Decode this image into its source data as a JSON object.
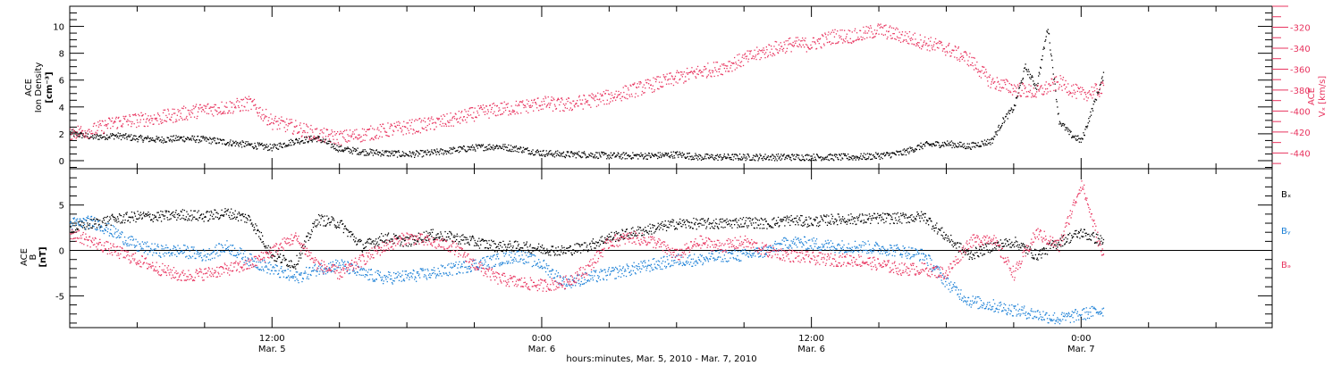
{
  "colors": {
    "black": "#000000",
    "pink": "#e8345f",
    "blue": "#1a7fd6"
  },
  "xaxis": {
    "title": "hours:minutes, Mar.  5, 2010 - Mar.  7, 2010",
    "ticks": [
      {
        "t": 12,
        "time": "12:00",
        "date": "Mar. 5"
      },
      {
        "t": 24,
        "time": "0:00",
        "date": "Mar. 6"
      },
      {
        "t": 36,
        "time": "12:00",
        "date": "Mar. 6"
      },
      {
        "t": 48,
        "time": "0:00",
        "date": "Mar. 7"
      }
    ]
  },
  "chart_data": [
    {
      "type": "scatter",
      "panel": "top",
      "x_unit": "hours from 0:00 Mar. 5, 2010",
      "xlim": [
        3,
        56.5
      ],
      "left_axis": {
        "label_line1": "ACE",
        "label_line2": "Ion Density",
        "unit": "[cm⁻³]",
        "ylim": [
          -0.6,
          11.5
        ],
        "ticks": [
          0,
          2,
          4,
          6,
          8,
          10
        ]
      },
      "right_axis": {
        "label_line1": "ACE",
        "label_line2": "Vₓ [km/s]",
        "ylim": [
          -455,
          -300
        ],
        "ticks": [
          -320,
          -340,
          -360,
          -380,
          -400,
          -420,
          -440
        ]
      },
      "series": [
        {
          "axis": "left",
          "color": "black",
          "x": [
            3,
            4,
            5,
            6,
            7,
            8,
            9,
            10,
            11,
            12,
            13,
            14,
            15,
            16,
            17,
            18,
            19,
            20,
            21,
            22,
            23,
            24,
            25,
            26,
            27,
            28,
            29,
            30,
            31,
            32,
            33,
            34,
            35,
            36,
            37,
            38,
            39,
            40,
            41,
            42,
            43,
            44,
            44.5,
            45,
            45.5,
            46,
            46.5,
            47,
            47.5,
            48,
            48.5,
            49
          ],
          "y": [
            2.1,
            1.8,
            1.9,
            1.7,
            1.6,
            1.7,
            1.6,
            1.4,
            1.2,
            1.0,
            1.5,
            1.7,
            0.9,
            0.7,
            0.6,
            0.5,
            0.6,
            0.8,
            1.0,
            1.1,
            0.9,
            0.6,
            0.5,
            0.5,
            0.4,
            0.4,
            0.4,
            0.5,
            0.3,
            0.3,
            0.3,
            0.3,
            0.3,
            0.3,
            0.3,
            0.3,
            0.4,
            0.6,
            1.2,
            1.3,
            1.1,
            1.5,
            3.0,
            4.0,
            7.0,
            5.5,
            10.0,
            3.0,
            2.0,
            1.5,
            4.0,
            6.5
          ]
        },
        {
          "axis": "right",
          "color": "pink",
          "x": [
            3,
            4,
            5,
            6,
            7,
            8,
            9,
            10,
            11,
            12,
            13,
            14,
            15,
            16,
            17,
            18,
            19,
            20,
            21,
            22,
            23,
            24,
            25,
            26,
            27,
            28,
            29,
            30,
            31,
            32,
            33,
            34,
            35,
            36,
            37,
            38,
            39,
            40,
            41,
            42,
            43,
            44,
            45,
            46,
            47,
            48,
            49
          ],
          "y": [
            -420,
            -418,
            -410,
            -408,
            -406,
            -402,
            -398,
            -396,
            -392,
            -410,
            -415,
            -422,
            -425,
            -422,
            -418,
            -415,
            -412,
            -408,
            -402,
            -398,
            -396,
            -392,
            -394,
            -390,
            -386,
            -380,
            -374,
            -368,
            -362,
            -358,
            -350,
            -342,
            -336,
            -336,
            -328,
            -328,
            -322,
            -328,
            -334,
            -340,
            -350,
            -372,
            -378,
            -382,
            -372,
            -384,
            -378
          ]
        }
      ]
    },
    {
      "type": "scatter",
      "panel": "bottom",
      "x_unit": "hours from 0:00 Mar. 5, 2010",
      "xlim": [
        3,
        56.5
      ],
      "left_axis": {
        "label_line1": "ACE",
        "label_line2": "B",
        "unit": "[nT]",
        "ylim": [
          -8.5,
          9
        ],
        "ticks": [
          -5,
          0,
          5
        ]
      },
      "legend": [
        "Bₓ",
        "Bᵧ",
        "Bₔ"
      ],
      "series": [
        {
          "name": "Bx",
          "color": "black",
          "x": [
            3,
            4,
            5,
            6,
            7,
            8,
            9,
            10,
            11,
            12,
            13,
            14,
            15,
            16,
            17,
            18,
            19,
            20,
            21,
            22,
            23,
            24,
            25,
            26,
            27,
            28,
            29,
            30,
            31,
            32,
            33,
            34,
            35,
            36,
            37,
            38,
            39,
            40,
            41,
            42,
            43,
            44,
            45,
            46,
            47,
            48,
            49
          ],
          "y": [
            2.5,
            3.0,
            3.5,
            3.8,
            3.8,
            4.0,
            3.8,
            4.2,
            3.5,
            -0.5,
            -1.5,
            3.5,
            3.0,
            0.5,
            1.5,
            1.0,
            1.8,
            1.5,
            1.0,
            0.5,
            0.5,
            0.2,
            0.0,
            0.5,
            1.5,
            2.0,
            2.5,
            3.0,
            3.0,
            3.0,
            3.2,
            3.0,
            3.4,
            3.2,
            3.5,
            3.5,
            3.6,
            3.6,
            3.8,
            1.5,
            -0.5,
            0.5,
            1.0,
            -0.5,
            1.0,
            2.0,
            1.0
          ]
        },
        {
          "name": "By",
          "color": "blue",
          "x": [
            3,
            4,
            5,
            6,
            7,
            8,
            9,
            10,
            11,
            12,
            13,
            14,
            15,
            16,
            17,
            18,
            19,
            20,
            21,
            22,
            23,
            24,
            25,
            26,
            27,
            28,
            29,
            30,
            31,
            32,
            33,
            34,
            35,
            36,
            37,
            38,
            39,
            40,
            41,
            42,
            43,
            44,
            45,
            46,
            47,
            48,
            49
          ],
          "y": [
            3.0,
            3.2,
            2.0,
            0.5,
            0.0,
            0.0,
            -0.5,
            0.5,
            -1.0,
            -2.0,
            -3.0,
            -2.0,
            -1.5,
            -2.5,
            -3.0,
            -2.8,
            -2.5,
            -2.0,
            -1.5,
            -1.0,
            -0.5,
            -1.5,
            -3.5,
            -3.0,
            -2.5,
            -2.0,
            -1.5,
            -1.0,
            -1.0,
            -0.5,
            -0.5,
            0.0,
            1.0,
            0.8,
            0.5,
            0.5,
            0.3,
            0.0,
            -0.5,
            -3.5,
            -5.5,
            -6.0,
            -6.5,
            -7.0,
            -7.5,
            -7.0,
            -6.5
          ]
        },
        {
          "name": "Bz",
          "color": "pink",
          "x": [
            3,
            4,
            5,
            6,
            7,
            8,
            9,
            10,
            11,
            12,
            13,
            14,
            15,
            16,
            17,
            18,
            19,
            20,
            21,
            22,
            23,
            24,
            25,
            26,
            27,
            28,
            29,
            30,
            31,
            32,
            33,
            34,
            35,
            36,
            37,
            38,
            39,
            40,
            41,
            42,
            43,
            44,
            45,
            46,
            47,
            48,
            49
          ],
          "y": [
            2.0,
            1.0,
            0.0,
            -1.0,
            -2.0,
            -2.8,
            -2.5,
            -2.0,
            -1.5,
            0.0,
            1.5,
            -1.5,
            -2.5,
            -1.0,
            0.5,
            1.5,
            1.0,
            0.5,
            -1.5,
            -3.0,
            -3.5,
            -3.8,
            -3.5,
            -2.0,
            1.0,
            1.5,
            1.0,
            -0.5,
            1.0,
            0.5,
            1.0,
            0.0,
            -0.5,
            -0.8,
            -1.0,
            -1.0,
            -1.5,
            -2.0,
            -2.0,
            -2.5,
            1.0,
            1.5,
            -2.5,
            2.0,
            0.5,
            7.5,
            -1.0
          ]
        }
      ]
    }
  ]
}
